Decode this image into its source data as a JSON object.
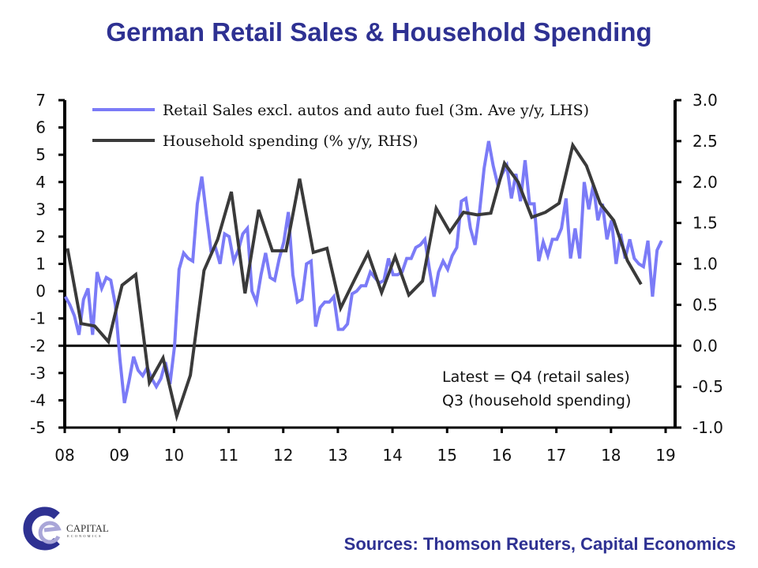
{
  "title": "German Retail Sales & Household Spending",
  "sources": "Sources: Thomson Reuters, Capital Economics",
  "logo": {
    "name": "CAPITAL",
    "sub": "ECONOMICS"
  },
  "colors": {
    "title": "#2e3192",
    "retail": "#7b7bf7",
    "household": "#3a3a3a",
    "axis": "#000000"
  },
  "chart_data": {
    "type": "line",
    "title": "German Retail Sales & Household Spending",
    "xlabel": "",
    "ylabel_left": "",
    "ylabel_right": "",
    "x_ticks": [
      "08",
      "09",
      "10",
      "11",
      "12",
      "13",
      "14",
      "15",
      "16",
      "17",
      "18",
      "19"
    ],
    "x_range": [
      2008.0,
      2019.0
    ],
    "y_left": {
      "range": [
        -5,
        7
      ],
      "ticks": [
        "7",
        "6",
        "5",
        "4",
        "3",
        "2",
        "1",
        "0",
        "-1",
        "-2",
        "-3",
        "-4",
        "-5"
      ],
      "tick_values": [
        7,
        6,
        5,
        4,
        3,
        2,
        1,
        0,
        -1,
        -2,
        -3,
        -4,
        -5
      ]
    },
    "y_right": {
      "range": [
        -1.0,
        3.0
      ],
      "ticks": [
        "3.0",
        "2.5",
        "2.0",
        "1.5",
        "1.0",
        "0.5",
        "0.0",
        "-0.5",
        "-1.0"
      ],
      "tick_values": [
        3.0,
        2.5,
        2.0,
        1.5,
        1.0,
        0.5,
        0.0,
        -0.5,
        -1.0
      ]
    },
    "zero_line_right": 0.0,
    "grid": false,
    "legend_position": "top-left",
    "annotation": [
      "Latest = Q4 (retail sales)",
      "Q3 (household spending)"
    ],
    "series": [
      {
        "name": "Retail Sales excl. autos and auto fuel (3m. Ave y/y, LHS)",
        "axis": "left",
        "frequency": "monthly",
        "start": 2008.0,
        "values": [
          -0.2,
          -0.5,
          -0.9,
          -1.6,
          -0.3,
          0.1,
          -1.6,
          0.7,
          0.1,
          0.5,
          0.4,
          -0.5,
          -2.5,
          -4.1,
          -3.3,
          -2.4,
          -2.9,
          -3.1,
          -2.8,
          -3.2,
          -3.5,
          -3.2,
          -2.6,
          -3.4,
          -2.0,
          0.8,
          1.4,
          1.2,
          1.1,
          3.2,
          4.2,
          2.8,
          1.5,
          1.6,
          1.0,
          2.1,
          2.0,
          1.1,
          1.5,
          2.1,
          2.3,
          0.0,
          -0.4,
          0.6,
          1.4,
          0.5,
          0.4,
          1.2,
          1.8,
          2.9,
          0.6,
          -0.4,
          -0.3,
          1.0,
          1.1,
          -1.3,
          -0.6,
          -0.4,
          -0.4,
          -0.2,
          -1.4,
          -1.4,
          -1.2,
          -0.1,
          0.0,
          0.2,
          0.2,
          0.7,
          0.5,
          0.3,
          0.4,
          1.2,
          0.6,
          0.6,
          0.7,
          1.2,
          1.2,
          1.6,
          1.7,
          1.9,
          0.8,
          -0.2,
          0.7,
          1.1,
          0.8,
          1.3,
          1.6,
          3.3,
          3.4,
          2.3,
          1.7,
          2.9,
          4.5,
          5.5,
          4.6,
          3.9,
          4.3,
          4.6,
          3.4,
          4.3,
          3.3,
          4.8,
          3.2,
          3.2,
          1.1,
          1.8,
          1.3,
          1.9,
          1.9,
          2.3,
          3.4,
          1.2,
          2.3,
          1.2,
          4.0,
          3.0,
          3.9,
          2.6,
          3.2,
          1.9,
          2.6,
          1.0,
          2.1,
          1.2,
          1.9,
          1.2,
          1.0,
          0.9,
          1.85,
          -0.2,
          1.5,
          1.85
        ]
      },
      {
        "name": "Household spending (% y/y, RHS)",
        "axis": "right",
        "frequency": "quarterly",
        "start": 2008.0,
        "values": [
          1.19,
          0.27,
          0.24,
          0.05,
          0.74,
          0.87,
          -0.45,
          -0.15,
          -0.86,
          -0.36,
          0.92,
          1.3,
          1.88,
          0.64,
          1.66,
          1.16,
          1.16,
          2.04,
          1.14,
          1.19,
          0.46,
          0.8,
          1.13,
          0.65,
          1.09,
          0.62,
          0.79,
          1.68,
          1.39,
          1.63,
          1.6,
          1.62,
          2.23,
          2.0,
          1.57,
          1.63,
          1.74,
          2.45,
          2.2,
          1.74,
          1.53,
          1.04,
          0.75
        ]
      }
    ]
  }
}
